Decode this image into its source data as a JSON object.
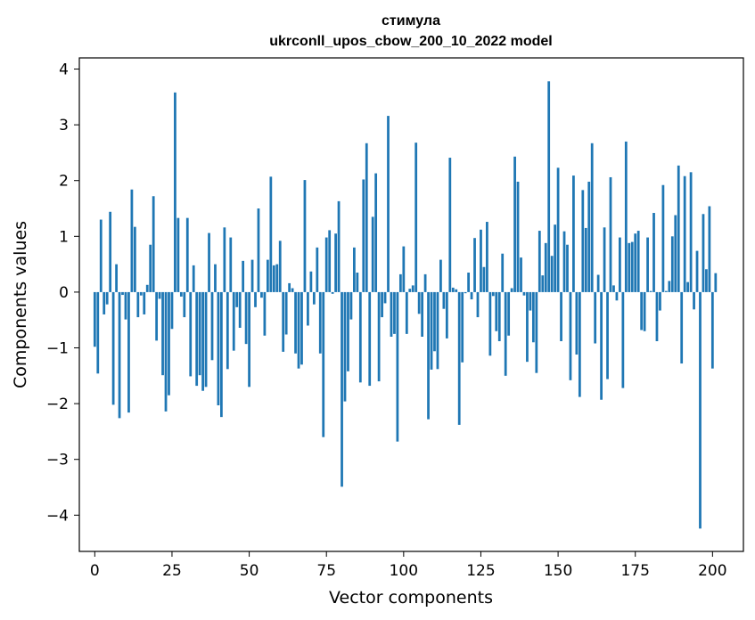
{
  "chart_data": {
    "type": "bar",
    "title": "стимула",
    "subtitle": "ukrconll_upos_cbow_200_10_2022 model",
    "xlabel": "Vector components",
    "ylabel": "Components values",
    "xlim": [
      -5,
      210
    ],
    "ylim": [
      -4.65,
      4.2
    ],
    "x_ticks": [
      0,
      25,
      50,
      75,
      100,
      125,
      150,
      175,
      200
    ],
    "y_ticks": [
      -4,
      -3,
      -2,
      -1,
      0,
      1,
      2,
      3,
      4
    ],
    "x_tick_labels": [
      "0",
      "25",
      "50",
      "75",
      "100",
      "125",
      "150",
      "175",
      "200"
    ],
    "y_tick_labels": [
      "−4",
      "−3",
      "−2",
      "−1",
      "0",
      "1",
      "2",
      "3",
      "4"
    ],
    "grid": false,
    "bar_color": "#1f77b4",
    "values": [
      -0.98,
      -1.46,
      1.3,
      -0.4,
      -0.22,
      1.44,
      -2.02,
      0.5,
      -2.26,
      -0.05,
      -0.49,
      -2.16,
      1.84,
      1.17,
      -0.45,
      -0.06,
      -0.4,
      0.13,
      0.85,
      1.72,
      -0.87,
      -0.12,
      -1.49,
      -2.14,
      -1.85,
      -0.66,
      3.58,
      1.33,
      -0.08,
      -0.45,
      1.33,
      -1.51,
      0.48,
      -1.68,
      -1.49,
      -1.77,
      -1.7,
      1.06,
      -1.22,
      0.5,
      -2.03,
      -2.24,
      1.16,
      -1.38,
      0.98,
      -1.05,
      -0.27,
      -0.64,
      0.56,
      -0.93,
      -1.7,
      0.58,
      -0.27,
      1.5,
      -0.1,
      -0.78,
      0.58,
      2.07,
      0.48,
      0.5,
      0.92,
      -1.07,
      -0.76,
      0.16,
      0.07,
      -1.1,
      -1.37,
      -1.3,
      2.01,
      -0.6,
      0.37,
      -0.22,
      0.8,
      -1.1,
      -2.6,
      0.98,
      1.11,
      -0.03,
      1.05,
      1.63,
      -3.49,
      -1.96,
      -1.42,
      -0.49,
      0.8,
      0.35,
      -1.62,
      2.02,
      2.67,
      -1.68,
      1.35,
      2.13,
      -1.6,
      -0.45,
      -0.2,
      3.16,
      -0.8,
      -0.75,
      -2.68,
      0.32,
      0.82,
      -0.75,
      0.06,
      0.12,
      2.68,
      -0.39,
      -0.8,
      0.32,
      -2.28,
      -1.39,
      -1.06,
      -1.38,
      0.58,
      -0.3,
      -0.83,
      2.41,
      0.08,
      0.05,
      -2.38,
      -1.26,
      -0.02,
      0.35,
      -0.13,
      0.97,
      -0.45,
      1.12,
      0.45,
      1.26,
      -1.14,
      -0.07,
      -0.7,
      -0.88,
      0.69,
      -1.5,
      -0.78,
      0.07,
      2.43,
      1.98,
      0.62,
      -0.06,
      -1.25,
      -0.33,
      -0.9,
      -1.45,
      1.1,
      0.3,
      0.88,
      3.78,
      0.65,
      1.21,
      2.23,
      -0.88,
      1.09,
      0.85,
      -1.58,
      2.09,
      -1.12,
      -1.88,
      1.83,
      1.15,
      1.98,
      2.67,
      -0.92,
      0.31,
      -1.93,
      1.16,
      -1.56,
      2.06,
      0.12,
      -0.15,
      0.98,
      -1.72,
      2.7,
      0.88,
      0.9,
      1.05,
      1.1,
      -0.68,
      -0.7,
      0.98,
      0.02,
      1.42,
      -0.88,
      -0.33,
      1.92,
      0.02,
      0.2,
      1.0,
      1.38,
      2.27,
      -1.28,
      2.08,
      0.18,
      2.15,
      -0.31,
      0.74,
      -4.24,
      1.4,
      0.41,
      1.54,
      -1.37,
      0.34
    ]
  }
}
